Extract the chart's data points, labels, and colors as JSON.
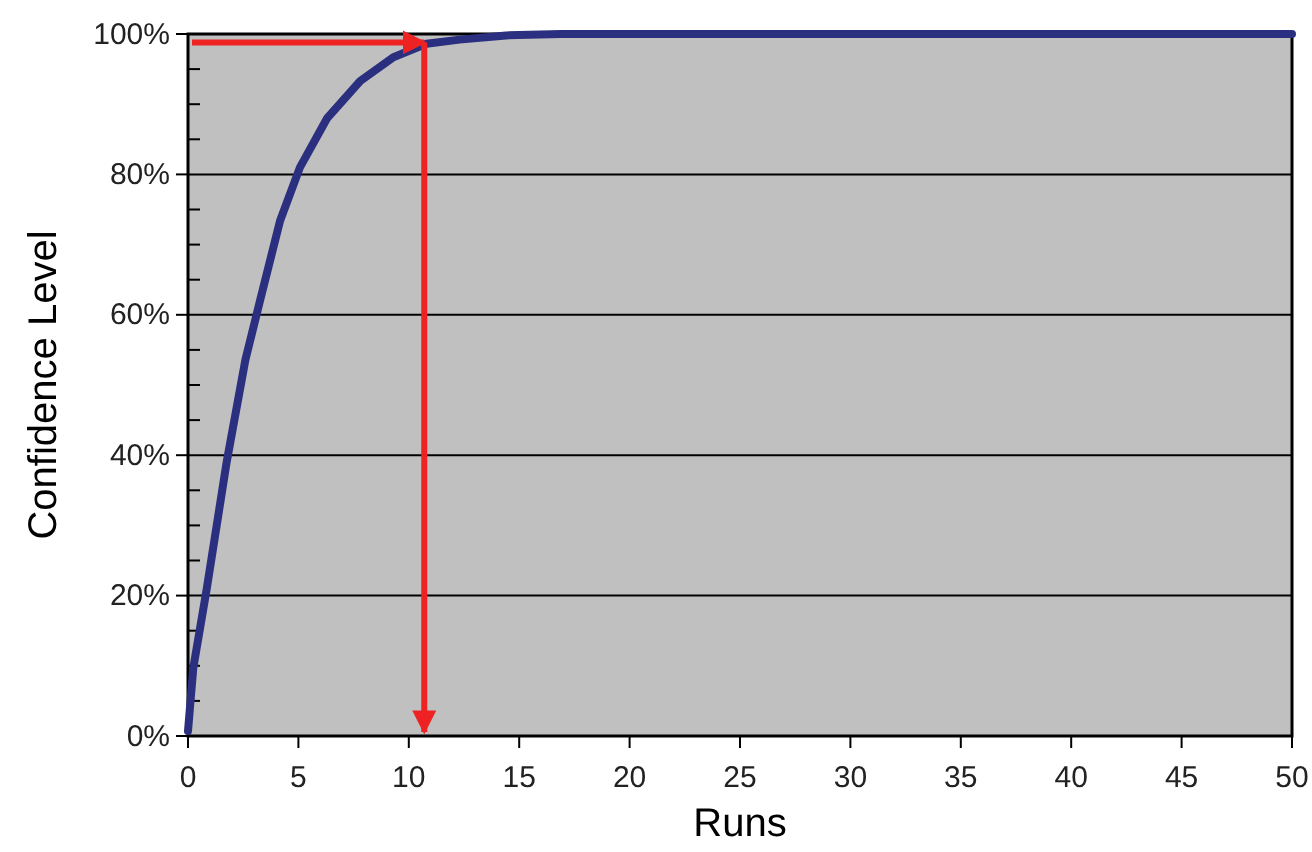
{
  "chart_data": {
    "type": "line",
    "xlabel": "Runs",
    "ylabel": "Confidence Level",
    "series": [
      {
        "color": "#2b2f7f",
        "x": [
          0,
          0.24,
          0.85,
          1.75,
          2.6,
          3.26,
          4.17,
          5.07,
          6.3,
          7.8,
          9.3,
          10.8,
          12.3,
          14.4,
          16.9,
          20,
          30,
          40,
          50
        ],
        "values": [
          0.7,
          9.7,
          21,
          39,
          53.6,
          62,
          73.4,
          81,
          88,
          93.3,
          96.7,
          98.6,
          99.2,
          99.8,
          100,
          100,
          100,
          100,
          100
        ]
      }
    ],
    "xlim": [
      0,
      50
    ],
    "xticks": [
      0,
      5,
      10,
      15,
      20,
      25,
      30,
      35,
      40,
      45,
      50
    ],
    "ylim": [
      0,
      100
    ],
    "yticks": [
      {
        "value": 0,
        "label": "0%"
      },
      {
        "value": 5,
        "label": null
      },
      {
        "value": 10,
        "label": null
      },
      {
        "value": 15,
        "label": null
      },
      {
        "value": 20,
        "label": "20%"
      },
      {
        "value": 25,
        "label": null
      },
      {
        "value": 30,
        "label": null
      },
      {
        "value": 35,
        "label": null
      },
      {
        "value": 40,
        "label": "40%"
      },
      {
        "value": 45,
        "label": null
      },
      {
        "value": 50,
        "label": null
      },
      {
        "value": 55,
        "label": null
      },
      {
        "value": 60,
        "label": "60%"
      },
      {
        "value": 65,
        "label": null
      },
      {
        "value": 70,
        "label": null
      },
      {
        "value": 75,
        "label": null
      },
      {
        "value": 80,
        "label": "80%"
      },
      {
        "value": 85,
        "label": null
      },
      {
        "value": 90,
        "label": null
      },
      {
        "value": 95,
        "label": null
      },
      {
        "value": 100,
        "label": "100%"
      }
    ],
    "grid": "y",
    "marker": "none",
    "line_style": "solid",
    "ref_lines": [
      {
        "axis": "y",
        "value": 98.8,
        "color": "#ee2222"
      },
      {
        "axis": "x",
        "value": 10.7,
        "color": "#ee2222"
      }
    ]
  }
}
